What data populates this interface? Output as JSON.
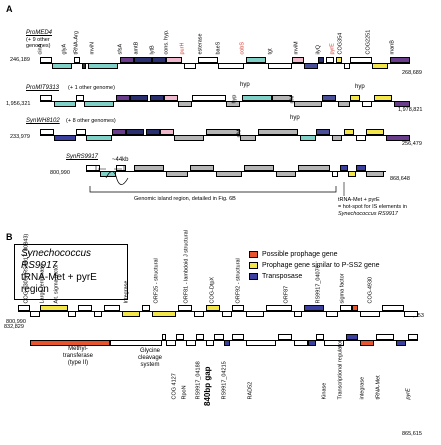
{
  "colors": {
    "prophage": "#e8542e",
    "p_ssp2": "#f2e64a",
    "transposase": "#3a3fa0",
    "teal": "#7fd1c8",
    "purple": "#6a3d8c",
    "gray": "#b5b5b5",
    "pink": "#f0b8cc",
    "red_label": "#d6372a"
  },
  "panelA": {
    "label": "A",
    "strain1": {
      "name": "ProMED4",
      "note": "(+ 9 other genomes)",
      "left": "246,189",
      "right": "268,689"
    },
    "strain2": {
      "name": "ProMIT9313",
      "note": "(+ 1 other genome)",
      "left": "1,956,321",
      "right": "1,978,821"
    },
    "strain3": {
      "name": "SynWH8102",
      "note": "(+ 8 other genomes)",
      "left": "233,979",
      "right": "256,479"
    },
    "strain4": {
      "name": "SynRS9917",
      "left": "800,990",
      "right": "868,648"
    },
    "genes1": [
      "cinA",
      "glyA",
      "tRNA-Arg",
      "mviN",
      "sfsA",
      "amtB",
      "lytB",
      "cons. hyp.",
      "purH",
      "esterase",
      "baeS",
      "cobS",
      "tgt",
      "mviM",
      "ilyQ",
      "pyrE",
      "COG354",
      "COG2251",
      "manB"
    ],
    "hyp_labels": [
      "hyp",
      "rfM",
      "hyp",
      "hyp",
      "rfM",
      "hyp"
    ],
    "kb": "~44kb",
    "island_note": "Genomic island region, detailed in Fig. 6B",
    "trna_note1": "tRNA-Met + pyrE",
    "trna_note2": "= hot-spot for IS elements in",
    "trna_note3": "Synechococcus RS9917"
  },
  "panelB": {
    "label": "B",
    "title1": "Synechococcus RS9917",
    "title2": "tRNA-Met + pyrE region",
    "legend": [
      "Possible prophage gene",
      "Prophage gene similar to P-SS2 gene",
      "Transposase"
    ],
    "row1_left": "800,990",
    "row1_right": "832,753",
    "row2_left": "832,829",
    "row2_right": "865,615",
    "row1_labels": [
      "COG 0305 (RS9917_00843)",
      "Large terminase",
      "Alt. sigma factor",
      "Integrase",
      "ORF25 - structural",
      "ORF81 - lambdoid J structural",
      "COG-DtpX",
      "ORF92 - structural",
      "ORF87",
      "RS9917_04076",
      "sigma factor",
      "COG-4930"
    ],
    "row2_labels": [
      "Methyl-transferase (type II)",
      "Glycine cleavage system",
      "COG 4127",
      "RpoN",
      "RS9917_04188",
      "RS9917_04215",
      "RAD52",
      "Kinase",
      "Transcriptional regulator",
      "integrase",
      "tRNA-Met",
      "pyrE"
    ],
    "gap": "840bp gap"
  }
}
